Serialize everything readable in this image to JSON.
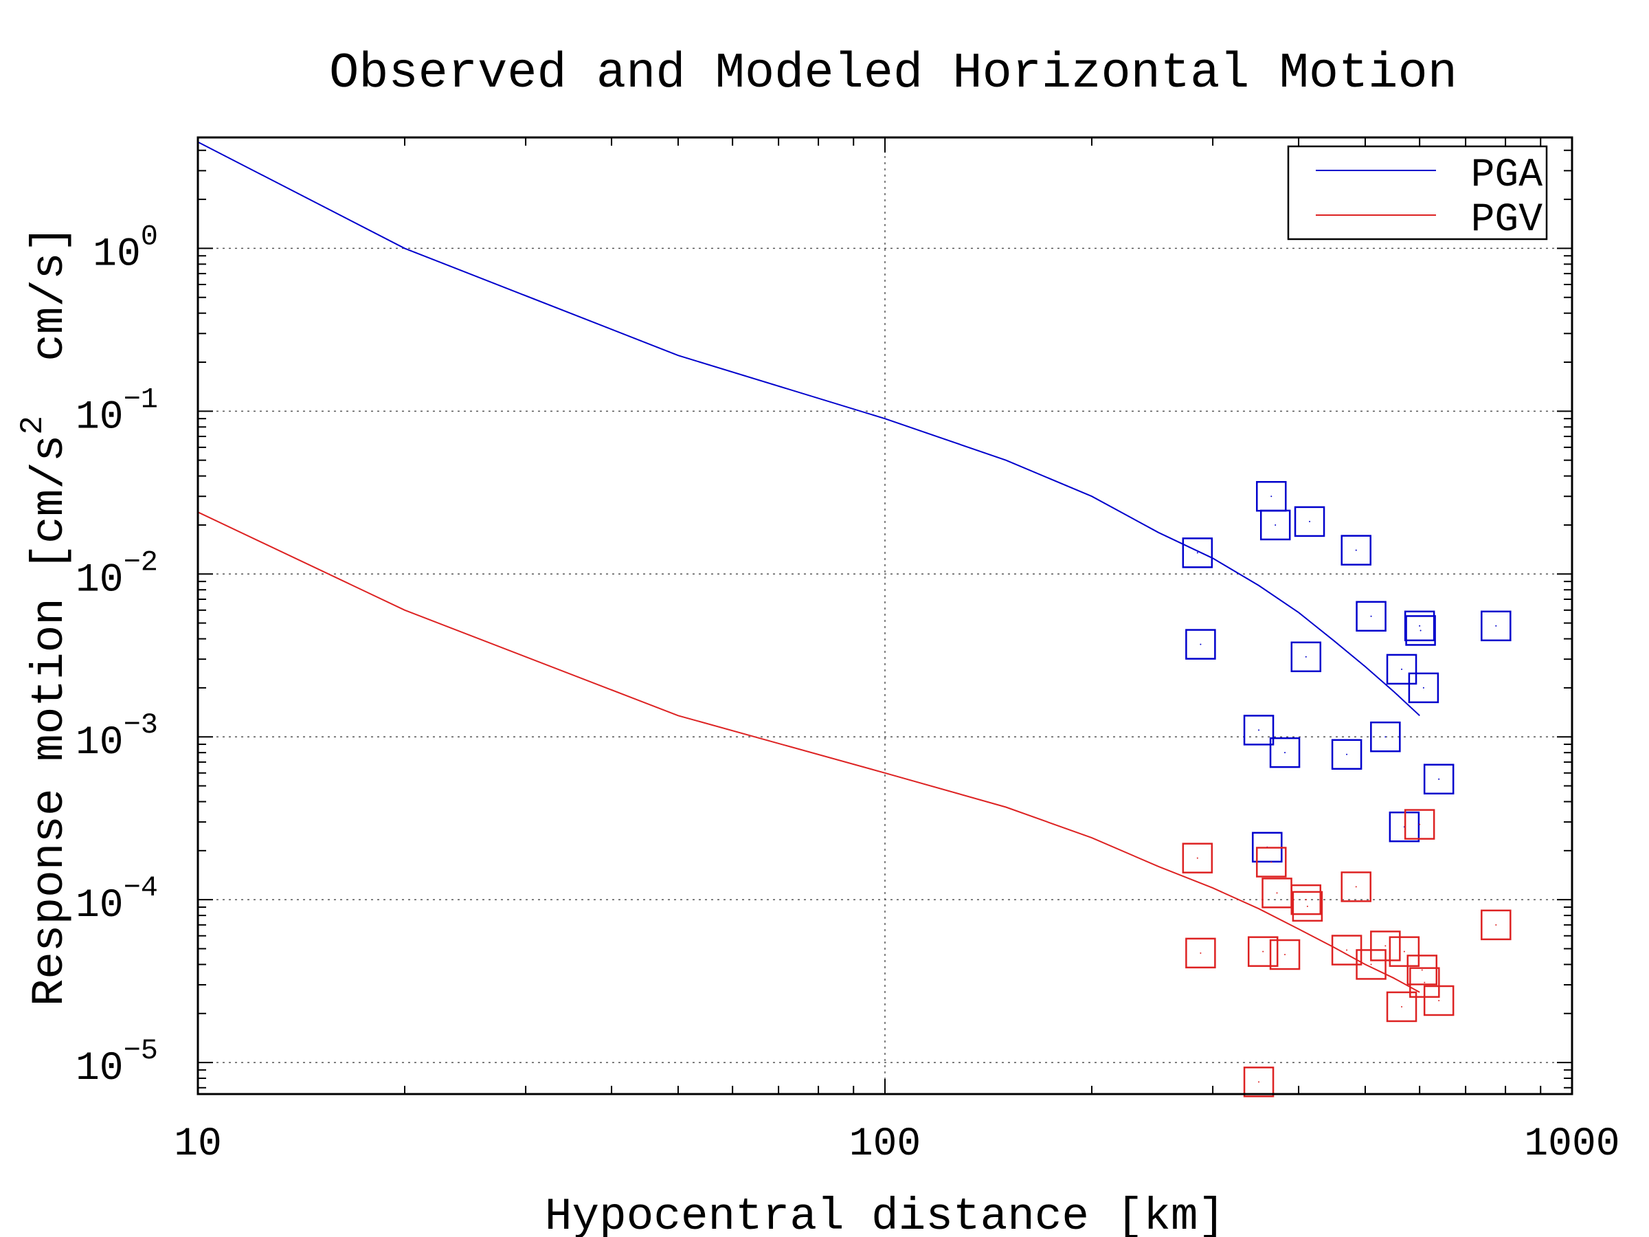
{
  "chart_data": {
    "type": "line",
    "title": "Observed and Modeled Horizontal Motion",
    "xlabel": "Hypocentral distance [km]",
    "ylabel": "Response motion [cm/s² cm/s]",
    "ylabel_parts": [
      "Response motion [cm/s",
      "2",
      "  cm/s]"
    ],
    "xscale": "log",
    "yscale": "log",
    "xlim": [
      10,
      1000
    ],
    "ylim": [
      6.4e-06,
      4.8
    ],
    "x_ticks": [
      {
        "value": 10,
        "label": "10"
      },
      {
        "value": 100,
        "label": "100"
      },
      {
        "value": 1000,
        "label": "1000"
      }
    ],
    "y_ticks": [
      {
        "value": 1,
        "base": "10",
        "exp": "0"
      },
      {
        "value": 0.1,
        "base": "10",
        "exp": "−1"
      },
      {
        "value": 0.01,
        "base": "10",
        "exp": "−2"
      },
      {
        "value": 0.001,
        "base": "10",
        "exp": "−3"
      },
      {
        "value": 0.0001,
        "base": "10",
        "exp": "−4"
      },
      {
        "value": 1e-05,
        "base": "10",
        "exp": "−5"
      }
    ],
    "grid": true,
    "legend_position": "top-right",
    "series": [
      {
        "name": "PGA",
        "color": "#0000cc",
        "model": {
          "x": [
            10,
            20,
            50,
            100,
            150,
            200,
            250,
            300,
            350,
            400,
            450,
            500,
            550,
            600
          ],
          "y": [
            4.5,
            1.0,
            0.22,
            0.09,
            0.05,
            0.03,
            0.018,
            0.0125,
            0.0085,
            0.0058,
            0.0039,
            0.0027,
            0.0019,
            0.00135
          ]
        },
        "observed": {
          "x": [
            285,
            288,
            350,
            360,
            365,
            370,
            382,
            410,
            415,
            470,
            485,
            510,
            535,
            565,
            570,
            600,
            602,
            608,
            640,
            775
          ],
          "y": [
            0.0135,
            0.0037,
            0.0011,
            0.00021,
            0.03,
            0.02,
            0.0008,
            0.0031,
            0.021,
            0.00078,
            0.014,
            0.0055,
            0.001,
            0.0026,
            0.00028,
            0.0048,
            0.0045,
            0.002,
            0.00055,
            0.0048
          ]
        }
      },
      {
        "name": "PGV",
        "color": "#dd2222",
        "model": {
          "x": [
            10,
            20,
            50,
            100,
            150,
            200,
            250,
            300,
            350,
            400,
            450,
            500,
            550,
            600
          ],
          "y": [
            0.024,
            0.006,
            0.00135,
            0.0006,
            0.00037,
            0.00024,
            0.00016,
            0.000118,
            8.8e-05,
            6.6e-05,
            5.1e-05,
            4e-05,
            3.3e-05,
            2.7e-05
          ]
        },
        "observed": {
          "x": [
            285,
            288,
            350,
            355,
            365,
            372,
            382,
            410,
            412,
            470,
            485,
            510,
            535,
            565,
            570,
            600,
            605,
            610,
            640,
            775
          ],
          "y": [
            0.00018,
            4.7e-05,
            7.6e-06,
            4.8e-05,
            0.00017,
            0.00011,
            4.6e-05,
            0.0001,
            9.1e-05,
            4.9e-05,
            0.00012,
            4e-05,
            5.2e-05,
            2.2e-05,
            4.8e-05,
            0.00029,
            3.7e-05,
            3.1e-05,
            2.4e-05,
            7e-05
          ]
        }
      }
    ]
  }
}
